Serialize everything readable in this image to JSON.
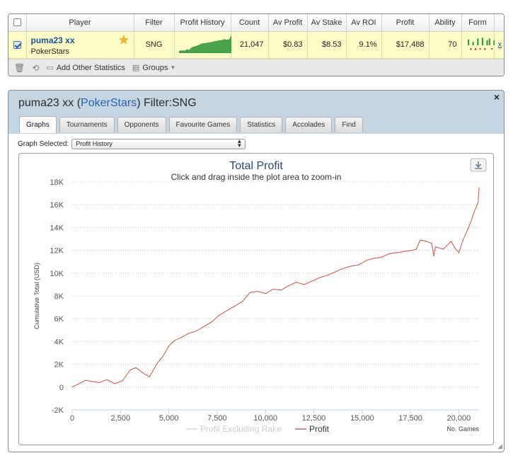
{
  "stats": {
    "headers": [
      "Player",
      "Filter",
      "Profit History",
      "Count",
      "Av Profit",
      "Av Stake",
      "Av ROI",
      "Profit",
      "Ability",
      "Form"
    ],
    "row": {
      "checked": true,
      "player_name": "puma23 xx",
      "site": "PokerStars",
      "filter": "SNG",
      "count": "21,047",
      "av_profit": "$0.83",
      "av_stake": "$8.53",
      "av_roi": "9.1%",
      "profit": "$17,488",
      "ability": "70",
      "form_values": [
        0.7,
        -0.5,
        0.4,
        -0.6,
        0.8,
        -0.4,
        0.9,
        -0.5,
        0.6,
        0.8,
        -0.4,
        0.6
      ],
      "remove_label": "x"
    },
    "footer": {
      "delete_icon": "trash-icon",
      "refresh_icon": "refresh-icon",
      "add_label": "Add Other Statistics",
      "groups_label": "Groups"
    }
  },
  "detail": {
    "title_player": "puma23 xx",
    "title_site": "PokerStars",
    "title_filter": "Filter:SNG",
    "close_label": "×",
    "tabs": [
      "Graphs",
      "Tournaments",
      "Opponents",
      "Favourite Games",
      "Statistics",
      "Accolades",
      "Find"
    ],
    "active_tab": 0,
    "graph_selected_label": "Graph Selected:",
    "graph_selected_value": "Profit History"
  },
  "chart_data": {
    "type": "line",
    "title": "Total Profit",
    "subtitle": "Click and drag inside the plot area to zoom-in",
    "xlabel": "No. Games",
    "ylabel": "Cumulative Total (USD)",
    "xlim": [
      0,
      21047
    ],
    "ylim": [
      -2000,
      18000
    ],
    "xticks": [
      0,
      2500,
      5000,
      7500,
      10000,
      12500,
      15000,
      17500,
      20000
    ],
    "xtick_labels": [
      "0",
      "2,500",
      "5,000",
      "7,500",
      "10,000",
      "12,500",
      "15,000",
      "17,500",
      "20,000"
    ],
    "yticks": [
      -2000,
      0,
      2000,
      4000,
      6000,
      8000,
      10000,
      12000,
      14000,
      16000,
      18000
    ],
    "ytick_labels": [
      "-2K",
      "0",
      "2K",
      "4K",
      "6K",
      "8K",
      "10K",
      "12K",
      "14K",
      "16K",
      "18K"
    ],
    "grid": "horizontal dotted",
    "legend_position": "bottom-center",
    "series": [
      {
        "name": "Profit Excluding Rake",
        "color": "#d8d8d8",
        "visible": false,
        "x": [],
        "y": []
      },
      {
        "name": "Profit",
        "color": "#c9625c",
        "visible": true,
        "x": [
          0,
          300,
          700,
          1000,
          1400,
          1800,
          2200,
          2600,
          3000,
          3300,
          3700,
          4000,
          4400,
          4700,
          5000,
          5300,
          5700,
          6000,
          6400,
          6800,
          7200,
          7600,
          8000,
          8400,
          8800,
          9000,
          9200,
          9600,
          10000,
          10400,
          10800,
          11200,
          11600,
          12000,
          12400,
          12800,
          13200,
          13600,
          14000,
          14400,
          14800,
          15200,
          15600,
          16000,
          16400,
          16800,
          17200,
          17600,
          17800,
          18000,
          18300,
          18600,
          18700,
          18800,
          19200,
          19600,
          19800,
          20000,
          20200,
          20400,
          20600,
          20800,
          21000,
          21047
        ],
        "y": [
          0,
          250,
          600,
          500,
          400,
          650,
          300,
          550,
          1500,
          1700,
          1200,
          900,
          2100,
          2700,
          3600,
          4100,
          4400,
          4700,
          4900,
          5300,
          5700,
          6300,
          6700,
          7100,
          7500,
          7900,
          8300,
          8400,
          8200,
          8600,
          8500,
          8900,
          9200,
          9000,
          9300,
          9600,
          9800,
          10100,
          10400,
          10600,
          10700,
          11100,
          11300,
          11400,
          11700,
          11800,
          11900,
          12000,
          12100,
          12900,
          12800,
          12600,
          11500,
          12300,
          12100,
          12800,
          12200,
          11800,
          12800,
          13600,
          14400,
          15400,
          16200,
          17488
        ]
      }
    ]
  }
}
